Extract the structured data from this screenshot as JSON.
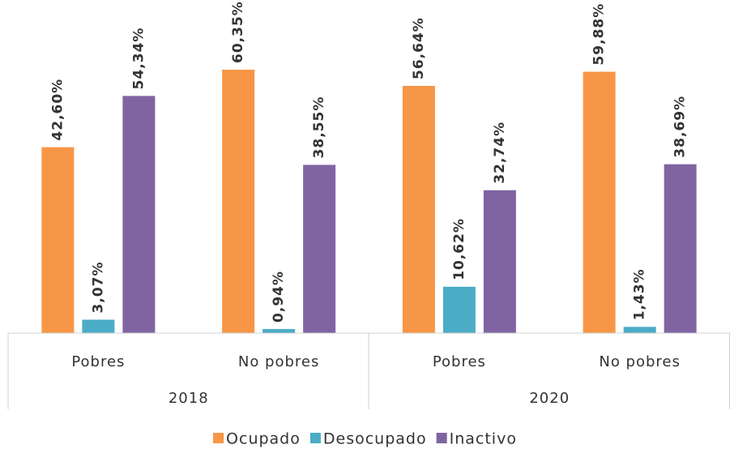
{
  "chart_data": {
    "type": "bar",
    "categories": [
      "Pobres",
      "No pobres",
      "Pobres",
      "No pobres"
    ],
    "groups": [
      "2018",
      "2020"
    ],
    "series": [
      {
        "name": "Ocupado",
        "color": "#f79646",
        "values": [
          42.6,
          60.35,
          56.64,
          59.88
        ],
        "value_labels": [
          "42,60%",
          "60,35%",
          "56,64%",
          "59,88%"
        ]
      },
      {
        "name": "Desocupado",
        "color": "#4bacc6",
        "values": [
          3.07,
          0.94,
          10.62,
          1.43
        ],
        "value_labels": [
          "3,07%",
          "0,94%",
          "10,62%",
          "1,43%"
        ]
      },
      {
        "name": "Inactivo",
        "color": "#8064a2",
        "values": [
          54.34,
          38.55,
          32.74,
          38.69
        ],
        "value_labels": [
          "54,34%",
          "38,55%",
          "32,74%",
          "38,69%"
        ]
      }
    ]
  }
}
